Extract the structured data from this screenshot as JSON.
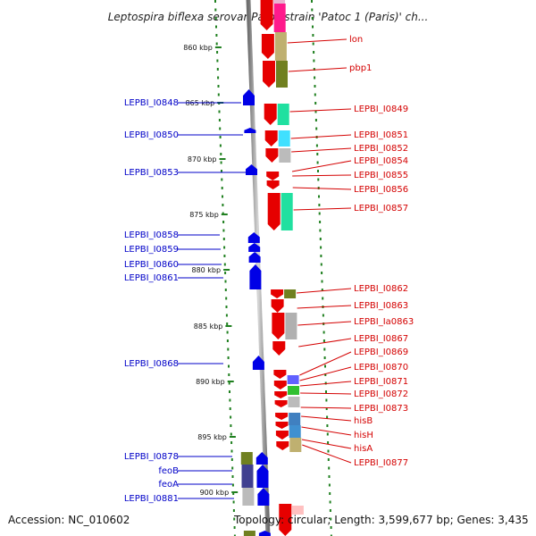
{
  "title": "Leptospira biflexa serovar Patoc strain 'Patoc 1 (Paris)' ch...",
  "footer": {
    "accession": "Accession: NC_010602",
    "topology": "Topology: circular; Length: 3,599,677 bp; Genes: 3,435"
  },
  "kbp_labels": [
    "860 kbp",
    "865 kbp",
    "870 kbp",
    "875 kbp",
    "880 kbp",
    "885 kbp",
    "890 kbp",
    "895 kbp",
    "900 kbp"
  ],
  "left_genes": [
    "LEPBI_I0848",
    "LEPBI_I0850",
    "LEPBI_I0853",
    "LEPBI_I0858",
    "LEPBI_I0859",
    "LEPBI_I0860",
    "LEPBI_I0861",
    "LEPBI_I0868",
    "LEPBI_I0878",
    "feoB",
    "feoA",
    "LEPBI_I0881"
  ],
  "right_genes": [
    "lon",
    "pbp1",
    "LEPBI_I0849",
    "LEPBI_I0851",
    "LEPBI_I0852",
    "LEPBI_I0854",
    "LEPBI_I0855",
    "LEPBI_I0856",
    "LEPBI_I0857",
    "LEPBI_I0862",
    "LEPBI_I0863",
    "LEPBI_Ia0863",
    "LEPBI_I0867",
    "LEPBI_I0869",
    "LEPBI_I0870",
    "LEPBI_I0871",
    "LEPBI_I0872",
    "LEPBI_I0873",
    "hisB",
    "hisH",
    "hisA",
    "LEPBI_I0877"
  ],
  "colors": {
    "forward_gene": "#e60000",
    "reverse_gene": "#0000e6",
    "left_label": "#0000c8",
    "right_label": "#d40000",
    "ticks": "#208020",
    "backbone": "#888888"
  }
}
